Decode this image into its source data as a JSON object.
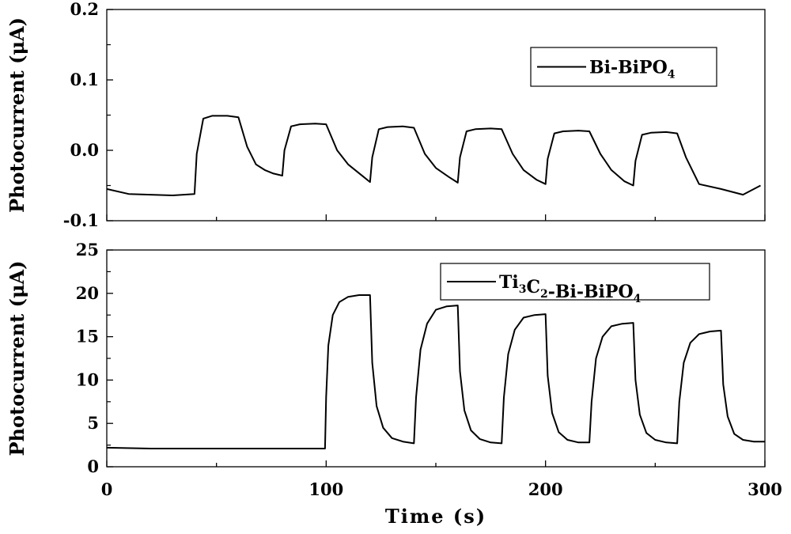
{
  "chart_data": [
    {
      "type": "line",
      "panel": "top",
      "ylabel": "Photocurrent (μA)",
      "xlim": [
        0,
        300
      ],
      "ylim": [
        -0.1,
        0.2
      ],
      "yticks": [
        -0.1,
        0.0,
        0.1,
        0.2
      ],
      "yticklabels": [
        "-0.1",
        "0.0",
        "0.1",
        "0.2"
      ],
      "legend_position": "top-right",
      "series": [
        {
          "name": "Bi-BiPO4",
          "legend": {
            "base": "Bi-BiPO",
            "sub": "4"
          },
          "color": "#000000",
          "x": [
            0,
            10,
            20,
            30,
            40,
            41,
            44,
            48,
            55,
            60,
            64,
            68,
            72,
            76,
            80,
            81,
            84,
            88,
            95,
            100,
            105,
            110,
            116,
            120,
            121,
            124,
            128,
            135,
            140,
            145,
            150,
            156,
            160,
            161,
            164,
            168,
            175,
            180,
            185,
            190,
            196,
            200,
            201,
            204,
            208,
            215,
            220,
            225,
            230,
            236,
            240,
            241,
            244,
            248,
            255,
            260,
            264,
            270,
            280,
            290,
            298
          ],
          "y": [
            -0.055,
            -0.062,
            -0.063,
            -0.064,
            -0.062,
            -0.005,
            0.045,
            0.049,
            0.049,
            0.047,
            0.005,
            -0.02,
            -0.028,
            -0.033,
            -0.036,
            0.0,
            0.034,
            0.037,
            0.038,
            0.037,
            0.0,
            -0.02,
            -0.035,
            -0.045,
            -0.01,
            0.03,
            0.033,
            0.034,
            0.032,
            -0.005,
            -0.025,
            -0.038,
            -0.046,
            -0.01,
            0.027,
            0.03,
            0.031,
            0.03,
            -0.005,
            -0.028,
            -0.042,
            -0.048,
            -0.012,
            0.024,
            0.027,
            0.028,
            0.027,
            -0.005,
            -0.028,
            -0.044,
            -0.05,
            -0.015,
            0.022,
            0.025,
            0.026,
            0.024,
            -0.01,
            -0.048,
            -0.055,
            -0.063,
            -0.05
          ]
        }
      ]
    },
    {
      "type": "line",
      "panel": "bottom",
      "xlabel": "Time (s)",
      "ylabel": "Photocurrent (μA)",
      "xlim": [
        0,
        300
      ],
      "ylim": [
        0,
        25
      ],
      "xticks": [
        0,
        100,
        200,
        300
      ],
      "yticks": [
        0,
        5,
        10,
        15,
        20,
        25
      ],
      "legend_position": "top-right",
      "series": [
        {
          "name": "Ti3C2-Bi-BiPO4",
          "legend": {
            "parts": [
              [
                "Ti",
                ""
              ],
              [
                "3",
                "sub"
              ],
              [
                "C",
                ""
              ],
              [
                "2",
                "sub"
              ],
              [
                "-Bi-BiPO",
                ""
              ],
              [
                "4",
                "sub"
              ]
            ]
          },
          "color": "#000000",
          "x": [
            0,
            20,
            40,
            60,
            80,
            99.5,
            100,
            101,
            103,
            106,
            110,
            115,
            120,
            121,
            123,
            126,
            130,
            135,
            140,
            141,
            143,
            146,
            150,
            155,
            160,
            161,
            163,
            166,
            170,
            175,
            180,
            181,
            183,
            186,
            190,
            195,
            200,
            201,
            203,
            206,
            210,
            215,
            220,
            221,
            223,
            226,
            230,
            235,
            240,
            241,
            243,
            246,
            250,
            255,
            260,
            261,
            263,
            266,
            270,
            275,
            280,
            281,
            283,
            286,
            290,
            295,
            300
          ],
          "y": [
            2.2,
            2.1,
            2.1,
            2.1,
            2.1,
            2.1,
            8,
            14,
            17.5,
            19,
            19.6,
            19.8,
            19.8,
            12,
            7,
            4.5,
            3.3,
            2.9,
            2.7,
            8,
            13.5,
            16.5,
            18.1,
            18.5,
            18.6,
            11,
            6.5,
            4.2,
            3.2,
            2.8,
            2.7,
            8,
            13,
            15.8,
            17.2,
            17.5,
            17.6,
            10.5,
            6.2,
            4,
            3.1,
            2.8,
            2.8,
            7.5,
            12.5,
            15,
            16.2,
            16.5,
            16.6,
            10,
            6,
            3.9,
            3.1,
            2.8,
            2.7,
            7.5,
            12,
            14.3,
            15.3,
            15.6,
            15.7,
            9.5,
            5.8,
            3.8,
            3.1,
            2.9,
            2.9
          ]
        }
      ]
    }
  ]
}
